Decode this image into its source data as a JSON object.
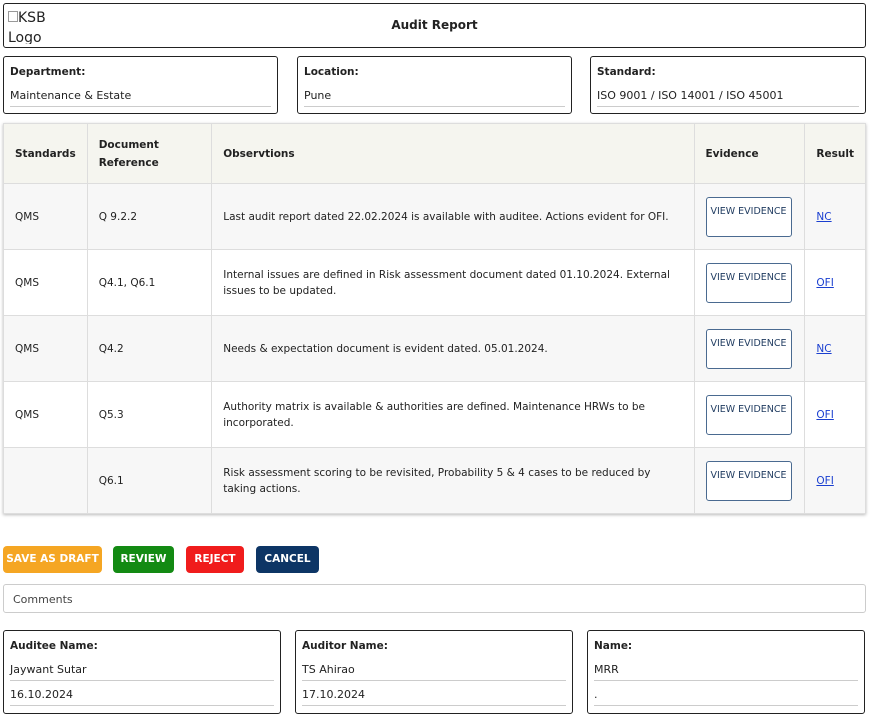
{
  "header": {
    "logo_alt": "KSB Logo",
    "title": "Audit Report"
  },
  "fields": [
    {
      "label": "Department:",
      "value": "Maintenance & Estate"
    },
    {
      "label": "Location:",
      "value": "Pune"
    },
    {
      "label": "Standard:",
      "value": "ISO 9001 / ISO 14001 / ISO 45001"
    }
  ],
  "table": {
    "columns": [
      "Standards",
      "Document Reference",
      "Observtions",
      "Evidence",
      "Result"
    ],
    "rows": [
      {
        "standard": "QMS",
        "reference": "Q 9.2.2",
        "observation": "Last audit report dated 22.02.2024 is available with auditee. Actions evident for OFI.",
        "evidence": "VIEW EVIDENCE",
        "result": "NC"
      },
      {
        "standard": "QMS",
        "reference": "Q4.1, Q6.1",
        "observation": "Internal issues are defined in Risk assessment document dated 01.10.2024. External issues to be updated.",
        "evidence": "VIEW EVIDENCE",
        "result": "OFI"
      },
      {
        "standard": "QMS",
        "reference": "Q4.2",
        "observation": "Needs & expectation document is evident dated. 05.01.2024.",
        "evidence": "VIEW EVIDENCE",
        "result": "NC"
      },
      {
        "standard": "QMS",
        "reference": "Q5.3",
        "observation": "Authority matrix is available & authorities are defined. Maintenance HRWs to be incorporated.",
        "evidence": "VIEW EVIDENCE",
        "result": "OFI"
      },
      {
        "standard": null,
        "reference": "Q6.1",
        "observation": "Risk assessment scoring to be revisited, Probability 5 & 4 cases to be reduced by taking actions.",
        "evidence": "VIEW EVIDENCE",
        "result": "OFI"
      }
    ]
  },
  "buttons": [
    "SAVE AS DRAFT",
    "REVIEW",
    "REJECT",
    "CANCEL"
  ],
  "comments": "Comments",
  "signoffs": [
    {
      "label": "Auditee Name:",
      "name": "Jaywant Sutar",
      "date": "16.10.2024"
    },
    {
      "label": "Auditor Name:",
      "name": "TS Ahirao",
      "date": "17.10.2024"
    },
    {
      "label": "Name:",
      "name": "MRR",
      "date": "."
    }
  ]
}
